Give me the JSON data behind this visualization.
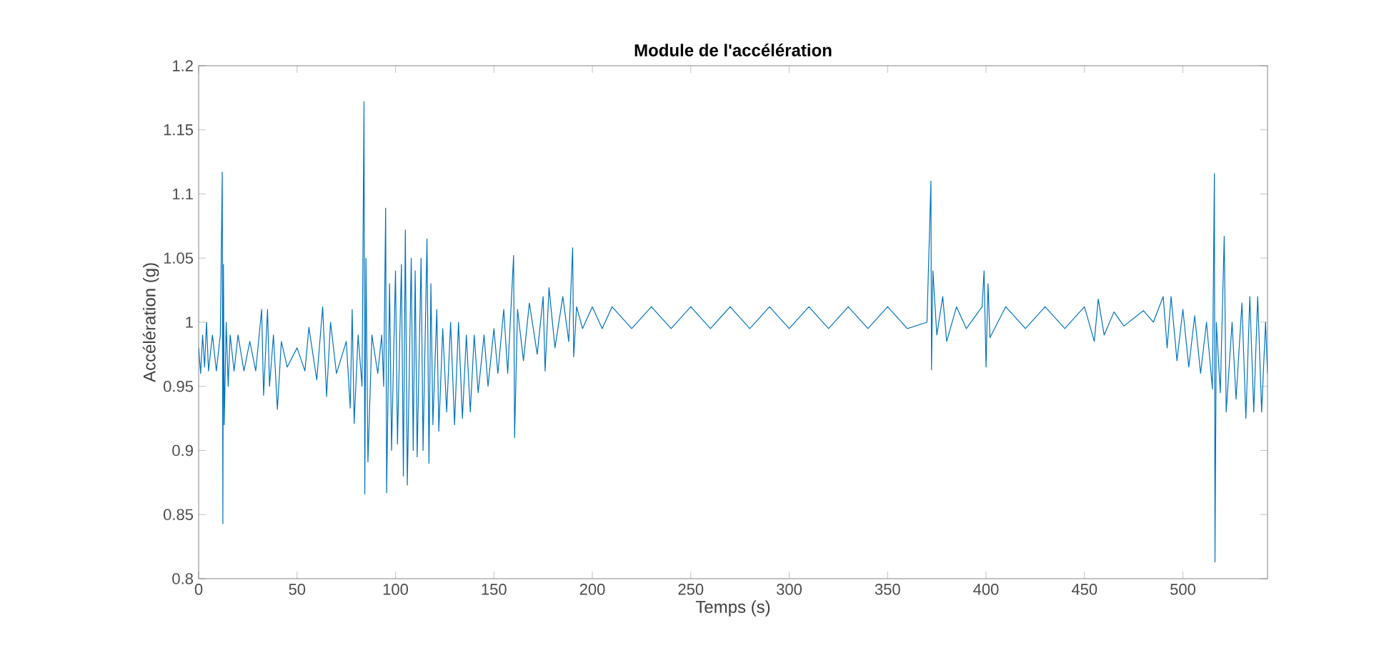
{
  "chart_data": {
    "type": "line",
    "title": "Module de l'accélération",
    "xlabel": "Temps (s)",
    "ylabel": "Accélération (g)",
    "xlim": [
      0,
      543
    ],
    "ylim": [
      0.8,
      1.2
    ],
    "xticks": [
      0,
      50,
      100,
      150,
      200,
      250,
      300,
      350,
      400,
      450,
      500
    ],
    "yticks": [
      0.8,
      0.85,
      0.9,
      0.95,
      1,
      1.05,
      1.1,
      1.15,
      1.2
    ],
    "grid": false,
    "marker": "none",
    "line_style": "solid",
    "series": [
      {
        "color": "#0072bd",
        "x": [
          0,
          1,
          2,
          3,
          4,
          5,
          7,
          9,
          11,
          12,
          12.3,
          12.6,
          13,
          14,
          15,
          16,
          18,
          20,
          23,
          26,
          29,
          32,
          33,
          35,
          36,
          38,
          40,
          42,
          45,
          50,
          54,
          56,
          60,
          63,
          65,
          67,
          70,
          75,
          77,
          78,
          79,
          81,
          83,
          84,
          84.4,
          85,
          86,
          88,
          91,
          93,
          94,
          95,
          95.5,
          97,
          98,
          100,
          101,
          103,
          104,
          105,
          106,
          108,
          109,
          110,
          111,
          113,
          114,
          116,
          117,
          118,
          119,
          121,
          122,
          124,
          126,
          128,
          130,
          132,
          134,
          136,
          138,
          140,
          142,
          145,
          147,
          150,
          152,
          155,
          157,
          160,
          160.5,
          162,
          165,
          168,
          172,
          175,
          176,
          178,
          181,
          185,
          188,
          190,
          190.5,
          192,
          195,
          200,
          205,
          210,
          220,
          230,
          240,
          250,
          260,
          270,
          280,
          290,
          300,
          310,
          320,
          330,
          340,
          350,
          360,
          370,
          372,
          372.3,
          373,
          375,
          378,
          380,
          385,
          390,
          398,
          399,
          400,
          401,
          402,
          410,
          420,
          430,
          440,
          450,
          455,
          457,
          460,
          465,
          470,
          480,
          485,
          490,
          492,
          494,
          497,
          500,
          503,
          506,
          509,
          512,
          515,
          516,
          516.3,
          517,
          519,
          521,
          522,
          525,
          527,
          530,
          532,
          534,
          536,
          538,
          540,
          542,
          543
        ],
        "values": [
          0.98,
          0.96,
          0.99,
          0.965,
          1.0,
          0.962,
          0.99,
          0.962,
          0.99,
          1.117,
          0.843,
          1.045,
          0.92,
          1.0,
          0.95,
          0.99,
          0.962,
          0.99,
          0.962,
          0.985,
          0.962,
          1.01,
          0.943,
          1.01,
          0.95,
          0.99,
          0.932,
          0.985,
          0.965,
          0.98,
          0.962,
          0.996,
          0.955,
          1.012,
          0.942,
          1.0,
          0.96,
          0.985,
          0.933,
          1.01,
          0.921,
          0.99,
          0.95,
          1.172,
          0.866,
          1.05,
          0.891,
          0.99,
          0.96,
          0.99,
          0.95,
          1.089,
          0.867,
          1.03,
          0.9,
          1.04,
          0.905,
          1.045,
          0.88,
          1.072,
          0.873,
          1.05,
          0.9,
          1.04,
          0.895,
          1.05,
          0.9,
          1.065,
          0.89,
          1.03,
          0.92,
          1.01,
          0.915,
          0.995,
          0.93,
          1.0,
          0.92,
          1.0,
          0.925,
          0.99,
          0.93,
          0.99,
          0.945,
          0.99,
          0.95,
          0.995,
          0.96,
          1.01,
          0.96,
          1.052,
          0.91,
          1.01,
          0.97,
          1.015,
          0.975,
          1.02,
          0.962,
          1.027,
          0.98,
          1.02,
          0.985,
          1.058,
          0.973,
          1.012,
          0.995,
          1.012,
          0.995,
          1.012,
          0.995,
          1.012,
          0.995,
          1.012,
          0.995,
          1.012,
          0.995,
          1.012,
          0.995,
          1.012,
          0.995,
          1.012,
          0.995,
          1.012,
          0.995,
          1.0,
          1.11,
          0.963,
          1.04,
          0.99,
          1.02,
          0.985,
          1.012,
          0.995,
          1.012,
          1.04,
          0.965,
          1.03,
          0.988,
          1.012,
          0.995,
          1.012,
          0.995,
          1.012,
          0.985,
          1.018,
          0.99,
          1.008,
          0.997,
          1.009,
          1.0,
          1.02,
          0.98,
          1.02,
          0.97,
          1.01,
          0.965,
          1.005,
          0.96,
          1.0,
          0.948,
          1.116,
          0.813,
          1.0,
          0.945,
          1.067,
          0.93,
          1.0,
          0.94,
          1.015,
          0.925,
          1.02,
          0.93,
          1.02,
          0.93,
          1.0,
          0.96
        ]
      }
    ]
  }
}
